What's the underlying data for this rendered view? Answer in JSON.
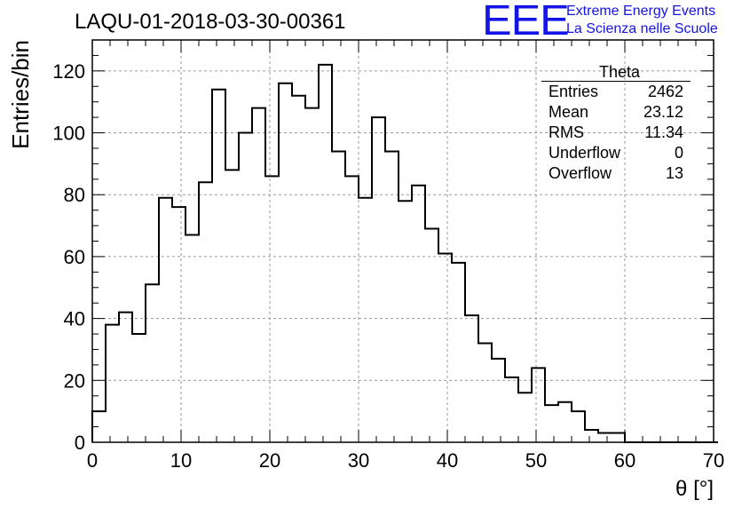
{
  "plot_title": "LAQU-01-2018-03-30-00361",
  "logo": {
    "mark": "EEE",
    "line1": "Extreme Energy Events",
    "line2": "La Scienza nelle Scuole",
    "color": "#1414e6"
  },
  "stats": {
    "name": "Theta",
    "rows": [
      {
        "label": "Entries",
        "value": "2462"
      },
      {
        "label": "Mean",
        "value": "23.12"
      },
      {
        "label": "RMS",
        "value": "11.34"
      },
      {
        "label": "Underflow",
        "value": "0"
      },
      {
        "label": "Overflow",
        "value": "13"
      }
    ]
  },
  "chart_data": {
    "type": "bar",
    "style": "step-histogram",
    "title": "LAQU-01-2018-03-30-00361",
    "xlabel": "θ [°]",
    "ylabel": "Entries/bin",
    "xlim": [
      0,
      70
    ],
    "ylim": [
      0,
      130
    ],
    "grid": true,
    "legend": "top-right",
    "bin_width": 1.5,
    "bin_start": 0,
    "values": [
      10,
      38,
      42,
      35,
      51,
      79,
      76,
      67,
      84,
      114,
      88,
      100,
      108,
      86,
      116,
      112,
      108,
      122,
      94,
      86,
      79,
      105,
      94,
      78,
      83,
      69,
      61,
      58,
      41,
      32,
      27,
      21,
      16,
      24,
      12,
      13,
      10,
      4,
      3,
      3,
      0,
      0,
      0,
      0,
      0,
      0,
      0
    ],
    "x_ticks": [
      0,
      10,
      20,
      30,
      40,
      50,
      60,
      70
    ],
    "x_tick_labels": [
      "0",
      "10",
      "20",
      "30",
      "40",
      "50",
      "60",
      "70"
    ],
    "y_ticks": [
      0,
      20,
      40,
      60,
      80,
      100,
      120
    ],
    "y_tick_labels": [
      "0",
      "20",
      "40",
      "60",
      "80",
      "100",
      "120"
    ]
  }
}
